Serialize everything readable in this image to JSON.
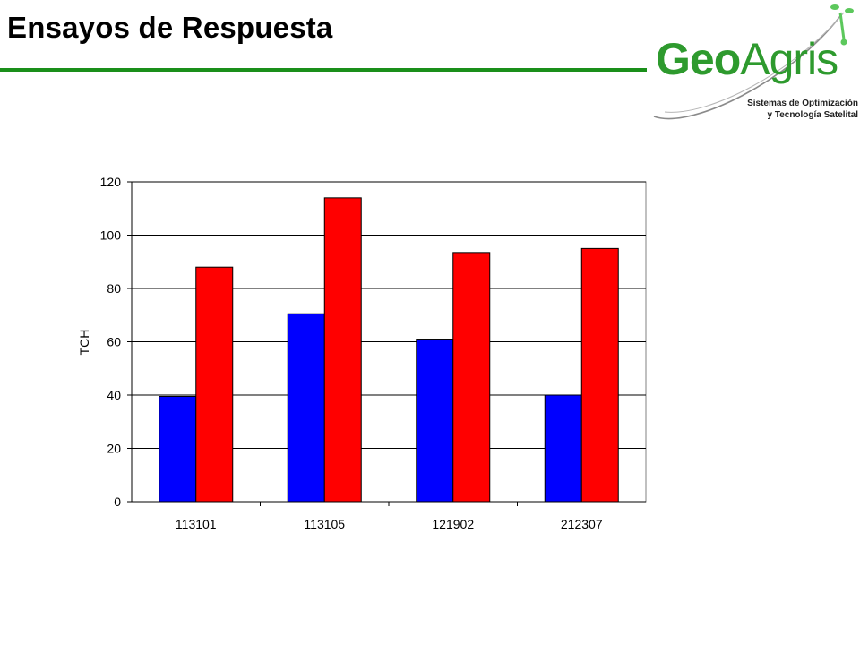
{
  "slide": {
    "title": "Ensayos de Respuesta"
  },
  "logo": {
    "word_part1": "Geo",
    "word_part2": "Agris",
    "tagline_line1": "Sistemas de Optimización",
    "tagline_line2": "y Tecnología Satelital",
    "brand_color": "#2e9a2e"
  },
  "chart_data": {
    "type": "bar",
    "categories": [
      "113101",
      "113105",
      "121902",
      "212307"
    ],
    "series": [
      {
        "color": "#0000ff",
        "values": [
          39.5,
          70.5,
          61,
          40
        ]
      },
      {
        "color": "#ff0000",
        "values": [
          88,
          114,
          93.5,
          95
        ]
      }
    ],
    "ylabel": "TCH",
    "ylim": [
      0,
      120
    ],
    "yticks": [
      "0",
      "20",
      "40",
      "60",
      "80",
      "100",
      "120"
    ],
    "grid": true
  }
}
